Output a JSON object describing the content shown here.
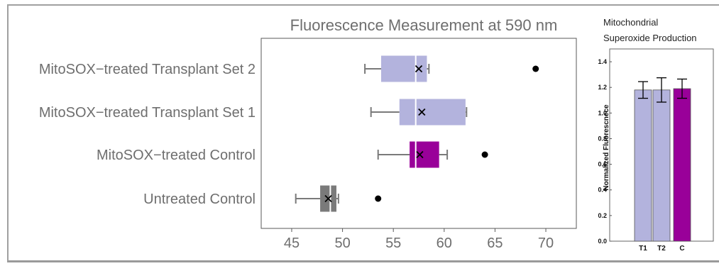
{
  "chart_data": [
    {
      "type": "box",
      "orientation": "horizontal",
      "title": "Fluorescence Measurement at 590 nm",
      "xlim": [
        42,
        73
      ],
      "xticks": [
        45,
        50,
        55,
        60,
        65,
        70
      ],
      "grid": false,
      "categories": [
        "MitoSOX−treated Transplant Set 2",
        "MitoSOX−treated Transplant Set 1",
        "MitoSOX−treated Control",
        "Untreated Control"
      ],
      "boxes": [
        {
          "whisker_low": 52.2,
          "q1": 53.8,
          "median": 57.2,
          "q3": 58.3,
          "whisker_high": 58.5,
          "mean": 57.5,
          "outliers": [
            69.0
          ],
          "color": "#b3b3dd"
        },
        {
          "whisker_low": 52.8,
          "q1": 55.6,
          "median": 57.2,
          "q3": 62.1,
          "whisker_high": 62.2,
          "mean": 57.8,
          "outliers": [],
          "color": "#b3b3dd"
        },
        {
          "whisker_low": 53.5,
          "q1": 56.6,
          "median": 57.2,
          "q3": 59.5,
          "whisker_high": 60.3,
          "mean": 57.6,
          "outliers": [
            64.0
          ],
          "color": "#990099"
        },
        {
          "whisker_low": 45.4,
          "q1": 47.8,
          "median": 48.8,
          "q3": 49.4,
          "whisker_high": 49.6,
          "mean": 48.6,
          "outliers": [
            53.5
          ],
          "color": "#7a7a7a"
        }
      ]
    },
    {
      "type": "bar",
      "title": "Mitochondrial Superoxide Production",
      "title_lines": [
        "Mitochondrial",
        "Superoxide Production"
      ],
      "xlabel": "",
      "ylabel": "Normalized Fluorescnece",
      "ylim": [
        0,
        1.5
      ],
      "yticks": [
        "0.0",
        "0.2",
        "0.4",
        "0.6",
        "0.8",
        "1.0",
        "1.2",
        "1.4"
      ],
      "categories": [
        "T1",
        "T2",
        "C"
      ],
      "values": [
        1.18,
        1.18,
        1.19
      ],
      "errors": [
        0.065,
        0.095,
        0.075
      ],
      "colors": [
        "#b3b3dd",
        "#b3b3dd",
        "#990099"
      ],
      "grid": false
    }
  ]
}
